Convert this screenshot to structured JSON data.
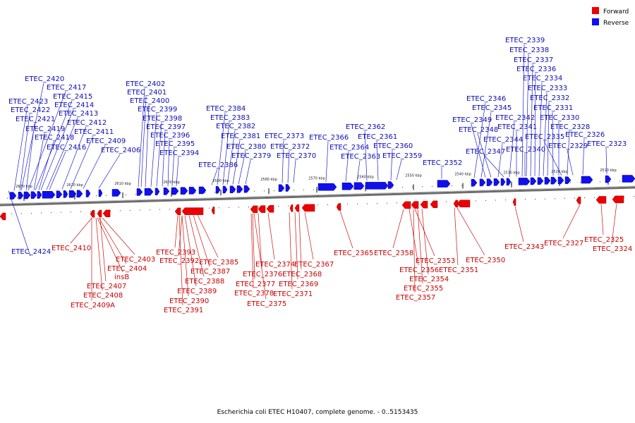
{
  "legend": {
    "forward_label": "Forward",
    "reverse_label": "Reverse",
    "forward_color": "#ee0000",
    "reverse_color": "#1010ee"
  },
  "footer": {
    "caption": "Escherichia coli ETEC H10407, complete genome. - 0..5153435"
  },
  "ticks": [
    "2630 kbp",
    "2620 kbp",
    "2610 kbp",
    "2600 kbp",
    "2590 kbp",
    "2580 kbp",
    "2570 kbp",
    "2560 kbp",
    "2550 kbp",
    "2540 kbp",
    "2530 kbp",
    "2520 kbp",
    "2510 kbp"
  ],
  "reverse_labels": [
    "ETEC_2420",
    "ETEC_2417",
    "ETEC_2415",
    "ETEC_2423",
    "ETEC_2414",
    "ETEC_2422",
    "ETEC_2413",
    "ETEC_2421",
    "ETEC_2412",
    "ETEC_2419",
    "ETEC_2411",
    "ETEC_2418",
    "ETEC_2409",
    "ETEC_2416",
    "ETEC_2406",
    "ETEC_2402",
    "ETEC_2401",
    "ETEC_2400",
    "ETEC_2399",
    "ETEC_2398",
    "ETEC_2397",
    "ETEC_2396",
    "ETEC_2395",
    "ETEC_2394",
    "ETEC_2384",
    "ETEC_2383",
    "ETEC_2382",
    "ETEC_2381",
    "ETEC_2380",
    "ETEC_2379",
    "ETEC_2386",
    "ETEC_2373",
    "ETEC_2372",
    "ETEC_2370",
    "ETEC_2366",
    "ETEC_2364",
    "ETEC_2363",
    "ETEC_2362",
    "ETEC_2361",
    "ETEC_2360",
    "ETEC_2359",
    "ETEC_2352",
    "ETEC_2346",
    "ETEC_2345",
    "ETEC_2349",
    "ETEC_2348",
    "ETEC_2344",
    "ETEC_2347",
    "ETEC_2342",
    "ETEC_2341",
    "ETEC_2340",
    "ETEC_2339",
    "ETEC_2338",
    "ETEC_2337",
    "ETEC_2336",
    "ETEC_2334",
    "ETEC_2333",
    "ETEC_2332",
    "ETEC_2331",
    "ETEC_2330",
    "ETEC_2335",
    "ETEC_2328",
    "ETEC_2326",
    "ETEC_2329",
    "ETEC_2323",
    "ETEC_2424"
  ],
  "forward_labels": [
    "ETEC_2410",
    "ETEC_2403",
    "ETEC_2404",
    "insB",
    "ETEC_2407",
    "ETEC_2408",
    "ETEC_2409A",
    "ETEC_2393",
    "ETEC_2392",
    "ETEC_2385",
    "ETEC_2387",
    "ETEC_2388",
    "ETEC_2389",
    "ETEC_2390",
    "ETEC_2391",
    "ETEC_2374",
    "ETEC_2367",
    "ETEC_2376",
    "ETEC_2368",
    "ETEC_2377",
    "ETEC_2369",
    "ETEC_2378",
    "ETEC_2371",
    "ETEC_2375",
    "ETEC_2365",
    "ETEC_2358",
    "ETEC_2353",
    "ETEC_2350",
    "ETEC_2356",
    "ETEC_2351",
    "ETEC_2354",
    "ETEC_2355",
    "ETEC_2357",
    "ETEC_2343",
    "ETEC_2327",
    "ETEC_2325",
    "ETEC_2324"
  ]
}
